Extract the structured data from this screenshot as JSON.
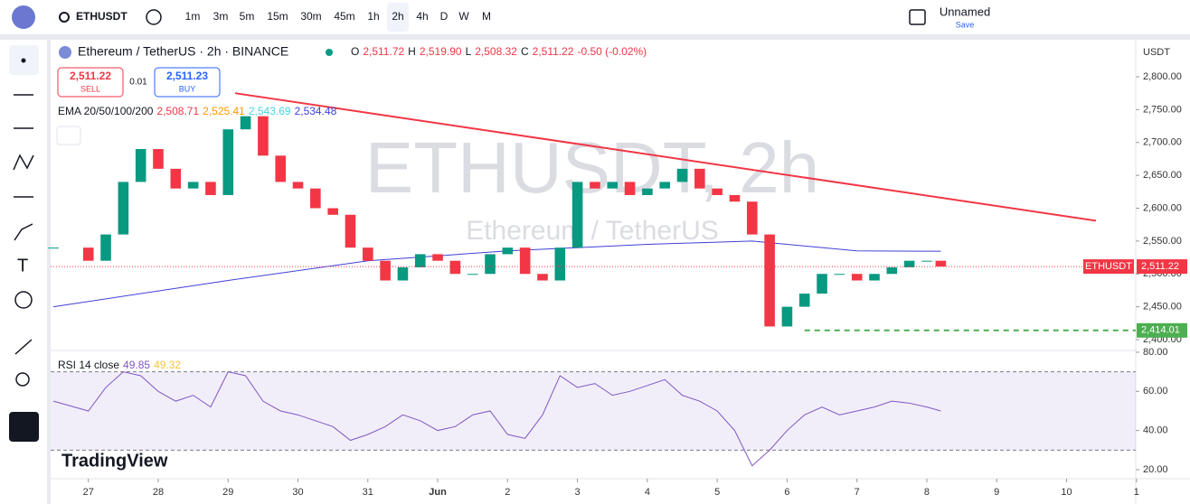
{
  "toolbar": {
    "symbol": "ETHUSDT",
    "intervals": [
      "1m",
      "3m",
      "5m",
      "15m",
      "30m",
      "45m",
      "1h",
      "2h",
      "4h",
      "D",
      "W",
      "M"
    ],
    "active": 7,
    "layout_name": "Unnamed",
    "save": "Save"
  },
  "legend": {
    "title": "Ethereum / TetherUS · 2h · BINANCE",
    "ohlc": [
      {
        "label": "O",
        "value": "2,511.72"
      },
      {
        "label": "H",
        "value": "2,519.90"
      },
      {
        "label": "L",
        "value": "2,508.32"
      },
      {
        "label": "C",
        "value": "2,511.22"
      }
    ],
    "change": "-0.50 (-0.02%)"
  },
  "trade": {
    "sell_price": "2,511.22",
    "sell": "SELL",
    "qty": "0.01",
    "buy_price": "2,511.23",
    "buy": "BUY"
  },
  "ema": {
    "label": "EMA 20/50/100/200",
    "values": [
      "2,508.71",
      "2,525.41",
      "2,543.69",
      "2,534.48"
    ],
    "colors": [
      "#f23645",
      "#ff9800",
      "#4dd0e1",
      "#3f3fd6"
    ]
  },
  "rsi": {
    "label": "RSI 14 close",
    "values": [
      "49.85",
      "49.32"
    ],
    "colors": [
      "#7e57c2",
      "#f7c43c"
    ]
  },
  "watermark": {
    "symbol": "ETHUSDT, 2h",
    "name": "Ethereum / TetherUS"
  },
  "brand": "TradingView",
  "currency": "USDT",
  "chart": {
    "type": "candlestick",
    "x": [
      -0.5,
      0,
      0.25,
      0.5,
      0.75,
      1,
      1.25,
      1.5,
      1.75,
      2,
      2.25,
      2.5,
      2.75,
      3,
      3.25,
      3.5,
      3.75,
      4,
      4.25,
      4.5,
      4.75,
      5,
      5.25,
      5.5,
      5.75,
      6,
      6.25,
      6.5,
      6.75,
      7,
      7.25,
      7.5,
      7.75,
      8,
      8.25,
      8.5,
      8.75,
      9,
      9.25,
      9.5,
      9.75,
      10,
      10.25,
      10.5,
      10.75,
      11,
      11.25,
      11.5,
      11.75,
      12,
      12.2
    ],
    "close": [
      2540,
      2520,
      2560,
      2640,
      2690,
      2660,
      2630,
      2640,
      2620,
      2720,
      2740,
      2680,
      2640,
      2630,
      2600,
      2590,
      2540,
      2520,
      2490,
      2510,
      2530,
      2520,
      2500,
      2500,
      2530,
      2540,
      2500,
      2490,
      2540,
      2640,
      2630,
      2640,
      2620,
      2630,
      2640,
      2660,
      2630,
      2620,
      2610,
      2560,
      2420,
      2450,
      2470,
      2500,
      2500,
      2490,
      2500,
      2510,
      2520,
      2520,
      2511.22
    ],
    "rsi_values": [
      55,
      50,
      62,
      70,
      68,
      60,
      55,
      58,
      52,
      70,
      68,
      55,
      50,
      48,
      45,
      42,
      35,
      38,
      42,
      48,
      45,
      40,
      42,
      48,
      50,
      38,
      36,
      48,
      68,
      62,
      64,
      58,
      60,
      63,
      66,
      58,
      55,
      50,
      40,
      22,
      30,
      40,
      48,
      52,
      48,
      50,
      52,
      55,
      54,
      52,
      50
    ],
    "ema_200": {
      "x": [
        -0.5,
        2,
        4,
        6,
        8,
        9.5,
        11,
        12.2
      ],
      "values": [
        2450,
        2490,
        2520,
        2535,
        2545,
        2550,
        2535,
        2534.48
      ]
    },
    "xlim": [
      -0.54,
      14.99
    ],
    "xticks": [
      {
        "value": 0,
        "label": "27"
      },
      {
        "value": 1,
        "label": "28"
      },
      {
        "value": 2,
        "label": "29"
      },
      {
        "value": 3,
        "label": "30"
      },
      {
        "value": 4,
        "label": "31"
      },
      {
        "value": 5,
        "label": "Jun"
      },
      {
        "value": 6,
        "label": "2"
      },
      {
        "value": 7,
        "label": "3"
      },
      {
        "value": 8,
        "label": "4"
      },
      {
        "value": 9,
        "label": "5"
      },
      {
        "value": 10,
        "label": "6"
      },
      {
        "value": 11,
        "label": "7"
      },
      {
        "value": 12,
        "label": "8"
      },
      {
        "value": 13,
        "label": "9"
      },
      {
        "value": 14,
        "label": "10"
      },
      {
        "value": 15,
        "label": "1"
      }
    ],
    "ylim": [
      2383.5,
      2855
    ],
    "yticks": [
      {
        "value": 2800,
        "label": "2,800.00"
      },
      {
        "value": 2750,
        "label": "2,750.00"
      },
      {
        "value": 2700,
        "label": "2,700.00"
      },
      {
        "value": 2650,
        "label": "2,650.00"
      },
      {
        "value": 2600,
        "label": "2,600.00"
      },
      {
        "value": 2550,
        "label": "2,550.00"
      },
      {
        "value": 2500,
        "label": "2,500.00"
      },
      {
        "value": 2450,
        "label": "2,450.00"
      },
      {
        "value": 2400,
        "label": "2,400.00"
      }
    ],
    "rsi_ylim": [
      15.4,
      80.9
    ],
    "rsi_yticks": [
      {
        "value": 80,
        "label": "80.00"
      },
      {
        "value": 60,
        "label": "60.00"
      },
      {
        "value": 40,
        "label": "40.00"
      },
      {
        "value": 20,
        "label": "20.00"
      }
    ],
    "rsi_bands": [
      70,
      30
    ],
    "last_price": {
      "label": "ETHUSDT",
      "value": 2511.22,
      "text": "2,511.22"
    },
    "alert_line": {
      "value": 2414.01,
      "label": "2,414.01",
      "x_start": 10.25
    },
    "trend_line": {
      "x": [
        2.1,
        14.42
      ],
      "y": [
        2775,
        2581
      ]
    }
  }
}
